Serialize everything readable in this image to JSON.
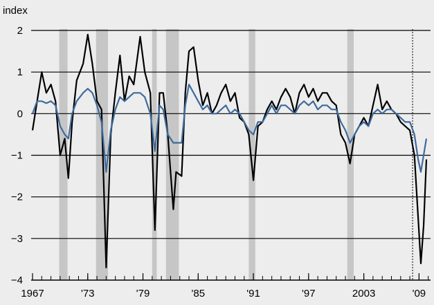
{
  "chart_data": {
    "type": "line",
    "y_label": "index",
    "x": [
      1967.0,
      1967.5,
      1968.0,
      1968.5,
      1969.0,
      1969.5,
      1970.0,
      1970.5,
      1970.9,
      1971.3,
      1971.8,
      1972.5,
      1973.0,
      1973.5,
      1974.0,
      1974.5,
      1975.0,
      1975.5,
      1976.0,
      1976.5,
      1977.0,
      1977.5,
      1978.0,
      1978.7,
      1979.2,
      1979.8,
      1980.3,
      1980.8,
      1981.2,
      1981.7,
      1982.3,
      1982.6,
      1983.2,
      1983.6,
      1984.0,
      1984.5,
      1985.0,
      1985.5,
      1986.0,
      1986.5,
      1987.0,
      1987.5,
      1988.0,
      1988.5,
      1989.0,
      1989.5,
      1990.0,
      1990.5,
      1991.0,
      1991.5,
      1992.0,
      1992.5,
      1993.0,
      1993.5,
      1994.0,
      1994.5,
      1995.0,
      1995.5,
      1996.0,
      1996.5,
      1997.0,
      1997.5,
      1998.0,
      1998.5,
      1999.0,
      1999.5,
      2000.0,
      2000.5,
      2001.0,
      2001.5,
      2002.0,
      2002.5,
      2003.0,
      2003.5,
      2004.0,
      2004.5,
      2005.0,
      2005.5,
      2006.0,
      2006.5,
      2007.0,
      2007.5,
      2008.0,
      2008.5,
      2008.9,
      2009.2,
      2009.5,
      2009.8
    ],
    "series": [
      {
        "color": "#000000",
        "values": [
          -0.4,
          0.3,
          1.0,
          0.5,
          0.7,
          0.3,
          -1.0,
          -0.6,
          -1.55,
          -0.2,
          0.8,
          1.2,
          1.9,
          1.2,
          0.3,
          0.1,
          -3.7,
          -0.5,
          0.5,
          1.4,
          0.3,
          0.9,
          0.7,
          1.85,
          1.0,
          0.5,
          -2.8,
          0.5,
          0.5,
          -0.5,
          -2.3,
          -1.4,
          -1.5,
          0.5,
          1.5,
          1.6,
          0.8,
          0.2,
          0.5,
          0.0,
          0.2,
          0.5,
          0.7,
          0.3,
          0.5,
          -0.1,
          -0.2,
          -0.5,
          -1.6,
          -0.3,
          -0.2,
          0.1,
          0.3,
          0.1,
          0.4,
          0.6,
          0.4,
          0.0,
          0.5,
          0.7,
          0.4,
          0.6,
          0.3,
          0.5,
          0.5,
          0.3,
          0.2,
          -0.5,
          -0.7,
          -1.2,
          -0.5,
          -0.3,
          -0.1,
          -0.3,
          0.2,
          0.7,
          0.1,
          0.3,
          0.1,
          0.0,
          -0.2,
          -0.3,
          -0.4,
          -1.0,
          -2.5,
          -3.6,
          -2.7,
          -1.1
        ]
      },
      {
        "color": "#3e6a9c",
        "values": [
          0,
          0.3,
          0.3,
          0.25,
          0.3,
          0.2,
          -0.3,
          -0.5,
          -0.6,
          0.0,
          0.3,
          0.5,
          0.6,
          0.5,
          0.2,
          -0.2,
          -1.4,
          -0.4,
          0.1,
          0.4,
          0.3,
          0.4,
          0.5,
          0.5,
          0.4,
          0.0,
          -0.9,
          0.2,
          0.1,
          -0.5,
          -0.7,
          -0.7,
          -0.7,
          0.2,
          0.7,
          0.5,
          0.3,
          0.1,
          0.2,
          0.0,
          0.0,
          0.1,
          0.2,
          0.0,
          0.1,
          0.0,
          -0.2,
          -0.4,
          -0.5,
          -0.2,
          -0.2,
          0.0,
          0.2,
          0.0,
          0.2,
          0.2,
          0.1,
          0.0,
          0.2,
          0.3,
          0.2,
          0.3,
          0.1,
          0.2,
          0.2,
          0.1,
          0.1,
          -0.2,
          -0.4,
          -0.7,
          -0.5,
          -0.3,
          -0.2,
          -0.3,
          0.0,
          0.1,
          0.0,
          0.1,
          0.1,
          0.0,
          -0.1,
          -0.2,
          -0.2,
          -0.5,
          -1.1,
          -1.4,
          -1.0,
          -0.6
        ]
      }
    ],
    "shading": [
      [
        1969.9,
        1970.8
      ],
      [
        1973.9,
        1975.2
      ],
      [
        1980.0,
        1980.5
      ],
      [
        1981.5,
        1982.9
      ],
      [
        1990.5,
        1991.2
      ],
      [
        2001.2,
        2001.9
      ]
    ],
    "shading_color": "#c6c6c6",
    "vline": 2008.3,
    "xlim": [
      1966.85,
      2010.25
    ],
    "xticks": [
      1967,
      {
        "value": 1973,
        "label": "'73"
      },
      {
        "value": 1979,
        "label": "'79"
      },
      {
        "value": 1985,
        "label": "'85"
      },
      {
        "value": 1991,
        "label": "'91"
      },
      {
        "value": 1997,
        "label": "'97"
      },
      2003,
      {
        "value": 2009,
        "label": "'09"
      }
    ],
    "xminor_step": 1,
    "ylim": [
      -4,
      2
    ],
    "yticks": [
      2,
      1,
      0,
      {
        "value": -1,
        "label": "−1"
      },
      {
        "value": -2,
        "label": "−2"
      },
      {
        "value": -3,
        "label": "−3"
      },
      {
        "value": -4,
        "label": "−4"
      }
    ],
    "grid": true
  }
}
